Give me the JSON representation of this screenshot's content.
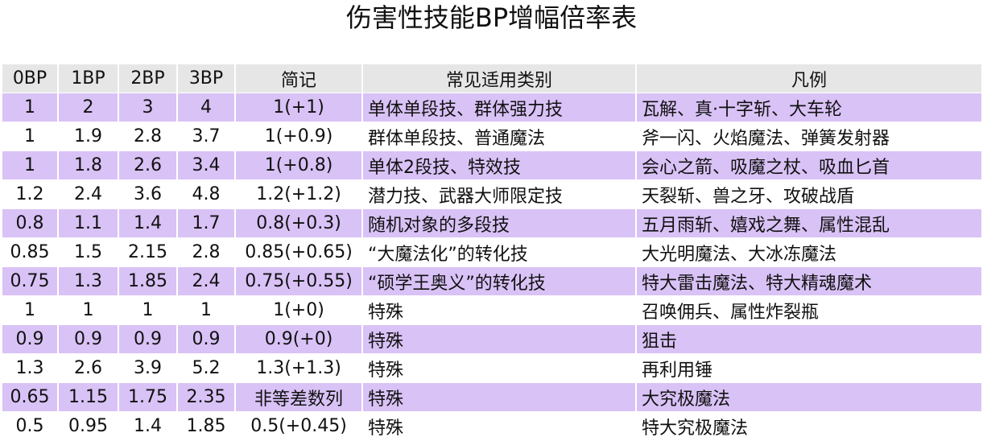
{
  "title": "伤害性技能BP增幅倍率表",
  "colors": {
    "stripe": "#d9c2f6",
    "header": "#e6e6e6"
  },
  "headers": [
    "0BP",
    "1BP",
    "2BP",
    "3BP",
    "简记",
    "常见适用类别",
    "凡例"
  ],
  "rows": [
    [
      "1",
      "2",
      "3",
      "4",
      "1(+1)",
      "单体单段技、群体强力技",
      "瓦解、真·十字斩、大车轮"
    ],
    [
      "1",
      "1.9",
      "2.8",
      "3.7",
      "1(+0.9)",
      "群体单段技、普通魔法",
      "斧一闪、火焰魔法、弹簧发射器"
    ],
    [
      "1",
      "1.8",
      "2.6",
      "3.4",
      "1(+0.8)",
      "单体2段技、特效技",
      "会心之箭、吸魔之杖、吸血匕首"
    ],
    [
      "1.2",
      "2.4",
      "3.6",
      "4.8",
      "1.2(+1.2)",
      "潜力技、武器大师限定技",
      "天裂斩、兽之牙、攻破战盾"
    ],
    [
      "0.8",
      "1.1",
      "1.4",
      "1.7",
      "0.8(+0.3)",
      "随机对象的多段技",
      "五月雨斩、嬉戏之舞、属性混乱"
    ],
    [
      "0.85",
      "1.5",
      "2.15",
      "2.8",
      "0.85(+0.65)",
      "“大魔法化”的转化技",
      "大光明魔法、大冰冻魔法"
    ],
    [
      "0.75",
      "1.3",
      "1.85",
      "2.4",
      "0.75(+0.55)",
      "“硕学王奥义”的转化技",
      "特大雷击魔法、特大精魂魔术"
    ],
    [
      "1",
      "1",
      "1",
      "1",
      "1(+0)",
      "特殊",
      "召唤佣兵、属性炸裂瓶"
    ],
    [
      "0.9",
      "0.9",
      "0.9",
      "0.9",
      "0.9(+0)",
      "特殊",
      "狙击"
    ],
    [
      "1.3",
      "2.6",
      "3.9",
      "5.2",
      "1.3(+1.3)",
      "特殊",
      "再利用锤"
    ],
    [
      "0.65",
      "1.15",
      "1.75",
      "2.35",
      "非等差数列",
      "特殊",
      "大究极魔法"
    ],
    [
      "0.5",
      "0.95",
      "1.4",
      "1.85",
      "0.5(+0.45)",
      "特殊",
      "特大究极魔法"
    ]
  ]
}
